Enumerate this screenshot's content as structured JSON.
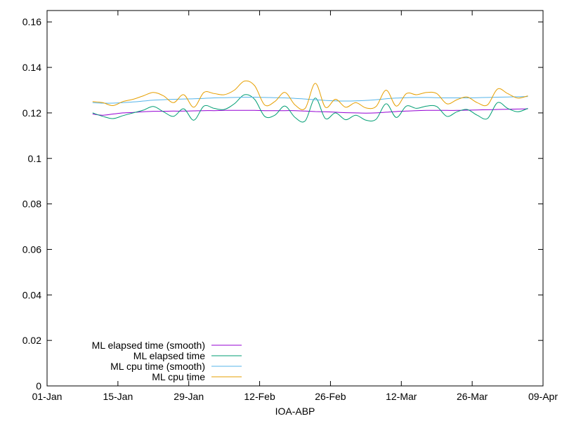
{
  "chart_data": {
    "type": "line",
    "title": "",
    "xlabel": "IOA-ABP",
    "ylabel": "",
    "ylim": [
      0,
      0.165
    ],
    "xlim": [
      "2021-01-01",
      "2021-04-09"
    ],
    "x_ticks": [
      "01-Jan",
      "15-Jan",
      "29-Jan",
      "12-Feb",
      "26-Feb",
      "12-Mar",
      "26-Mar",
      "09-Apr"
    ],
    "y_ticks": [
      "0",
      "0.02",
      "0.04",
      "0.06",
      "0.08",
      "0.1",
      "0.12",
      "0.14",
      "0.16"
    ],
    "legend_position": "bottom-left",
    "grid": false,
    "x": [
      "2021-01-10",
      "2021-01-12",
      "2021-01-14",
      "2021-01-16",
      "2021-01-18",
      "2021-01-20",
      "2021-01-22",
      "2021-01-24",
      "2021-01-26",
      "2021-01-28",
      "2021-01-30",
      "2021-02-01",
      "2021-02-03",
      "2021-02-05",
      "2021-02-07",
      "2021-02-09",
      "2021-02-11",
      "2021-02-13",
      "2021-02-15",
      "2021-02-17",
      "2021-02-19",
      "2021-02-21",
      "2021-02-23",
      "2021-02-25",
      "2021-02-27",
      "2021-03-01",
      "2021-03-03",
      "2021-03-05",
      "2021-03-07",
      "2021-03-09",
      "2021-03-11",
      "2021-03-13",
      "2021-03-15",
      "2021-03-17",
      "2021-03-19",
      "2021-03-21",
      "2021-03-23",
      "2021-03-25",
      "2021-03-27",
      "2021-03-29",
      "2021-03-31",
      "2021-04-02",
      "2021-04-04",
      "2021-04-06"
    ],
    "series": [
      {
        "name": "ML elapsed time (smooth)",
        "color": "#9400d3",
        "values": [
          0.1195,
          0.119,
          0.1195,
          0.12,
          0.1202,
          0.1205,
          0.1207,
          0.1207,
          0.1208,
          0.1208,
          0.1209,
          0.121,
          0.121,
          0.1211,
          0.1211,
          0.1211,
          0.1211,
          0.121,
          0.121,
          0.121,
          0.121,
          0.1208,
          0.1206,
          0.1205,
          0.1203,
          0.1201,
          0.12,
          0.1199,
          0.12,
          0.1203,
          0.1206,
          0.1208,
          0.121,
          0.1211,
          0.1211,
          0.1211,
          0.1211,
          0.1212,
          0.1213,
          0.1214,
          0.1215,
          0.1216,
          0.1217,
          0.1218
        ]
      },
      {
        "name": "ML elapsed time",
        "color": "#009e73",
        "values": [
          0.12,
          0.1185,
          0.1175,
          0.1188,
          0.12,
          0.1212,
          0.1228,
          0.1205,
          0.1185,
          0.1218,
          0.1168,
          0.123,
          0.122,
          0.1215,
          0.124,
          0.128,
          0.126,
          0.1185,
          0.119,
          0.123,
          0.118,
          0.1165,
          0.1265,
          0.1175,
          0.12,
          0.117,
          0.119,
          0.1168,
          0.1172,
          0.124,
          0.118,
          0.123,
          0.122,
          0.123,
          0.1228,
          0.1185,
          0.1205,
          0.1215,
          0.119,
          0.1175,
          0.1245,
          0.122,
          0.1205,
          0.122
        ]
      },
      {
        "name": "ML cpu time (smooth)",
        "color": "#56b4e9",
        "values": [
          0.1245,
          0.1243,
          0.1243,
          0.1245,
          0.1248,
          0.1252,
          0.1256,
          0.1258,
          0.126,
          0.1261,
          0.1262,
          0.1264,
          0.1266,
          0.1267,
          0.1268,
          0.1269,
          0.1269,
          0.1268,
          0.1267,
          0.1266,
          0.1264,
          0.1261,
          0.1258,
          0.1255,
          0.1253,
          0.1252,
          0.1253,
          0.1255,
          0.1258,
          0.1262,
          0.1265,
          0.1267,
          0.1268,
          0.1268,
          0.1267,
          0.1266,
          0.1266,
          0.1266,
          0.1267,
          0.1268,
          0.1269,
          0.127,
          0.1271,
          0.1272
        ]
      },
      {
        "name": "ML cpu time",
        "color": "#e69f00",
        "values": [
          0.125,
          0.1245,
          0.1232,
          0.125,
          0.126,
          0.1275,
          0.129,
          0.1275,
          0.1245,
          0.128,
          0.1225,
          0.129,
          0.1285,
          0.128,
          0.13,
          0.134,
          0.132,
          0.1235,
          0.125,
          0.129,
          0.1235,
          0.122,
          0.133,
          0.1225,
          0.126,
          0.1225,
          0.1245,
          0.1222,
          0.1228,
          0.13,
          0.123,
          0.1285,
          0.128,
          0.129,
          0.1285,
          0.124,
          0.1258,
          0.127,
          0.1245,
          0.1235,
          0.1305,
          0.1285,
          0.1265,
          0.1275
        ]
      }
    ]
  }
}
